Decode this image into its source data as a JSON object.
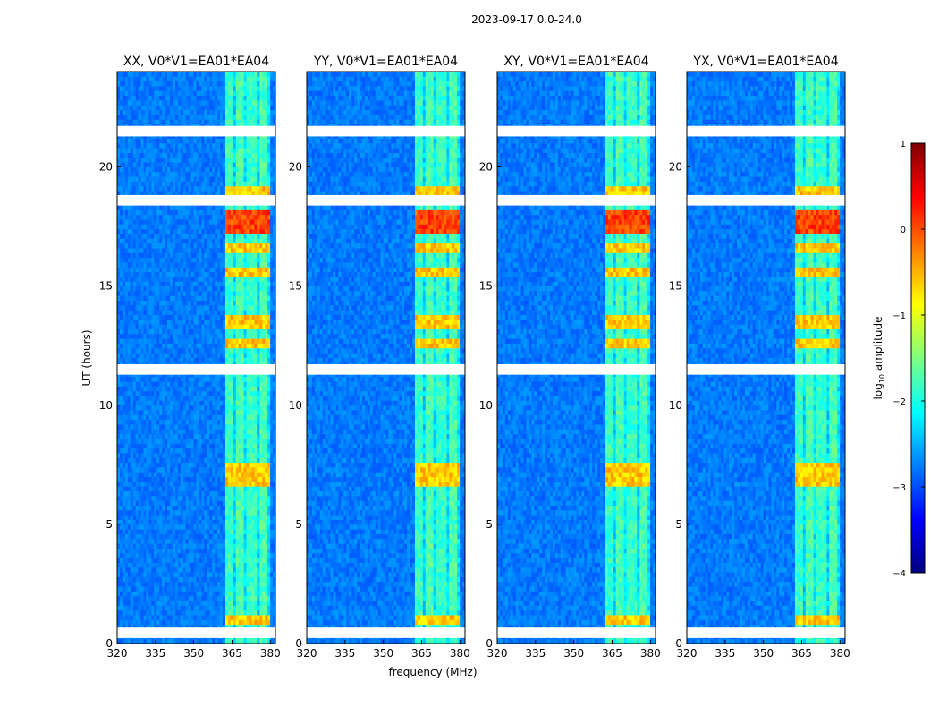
{
  "chart_data": {
    "type": "heatmap",
    "suptitle": "2023-09-17 0.0-24.0",
    "xlabel": "frequency (MHz)",
    "ylabel": "UT (hours)",
    "xlim": [
      320,
      382
    ],
    "ylim": [
      0,
      24
    ],
    "xticks": [
      320,
      335,
      350,
      365,
      380
    ],
    "yticks": [
      0,
      5,
      10,
      15,
      20
    ],
    "panels": [
      {
        "title": "XX, V0*V1=EA01*EA04"
      },
      {
        "title": "YY, V0*V1=EA01*EA04"
      },
      {
        "title": "XY, V0*V1=EA01*EA04"
      },
      {
        "title": "YX, V0*V1=EA01*EA04"
      }
    ],
    "colorbar": {
      "label": "log$_{10}$ amplitude",
      "label_main": "log",
      "label_sub": "10",
      "label_rest": " amplitude",
      "ticks": [
        "1",
        "0",
        "−1",
        "−2",
        "−3",
        "−4"
      ],
      "range": [
        -4,
        1
      ],
      "colormap": "jet"
    },
    "rfi_band_mhz": [
      362,
      380
    ],
    "strong_rfi_hours": [
      1.0,
      6.8,
      7.3,
      12.6,
      13.5,
      15.6,
      16.6,
      17.5,
      18.0,
      18.9
    ],
    "flagged_hours": [
      0.45,
      11.5,
      18.6,
      21.5
    ],
    "colors": {
      "background_low": "#0b1fd8",
      "rfi_mid": "#56ffa0",
      "rfi_high": "#ffe600",
      "rfi_peak": "#d70000"
    }
  }
}
